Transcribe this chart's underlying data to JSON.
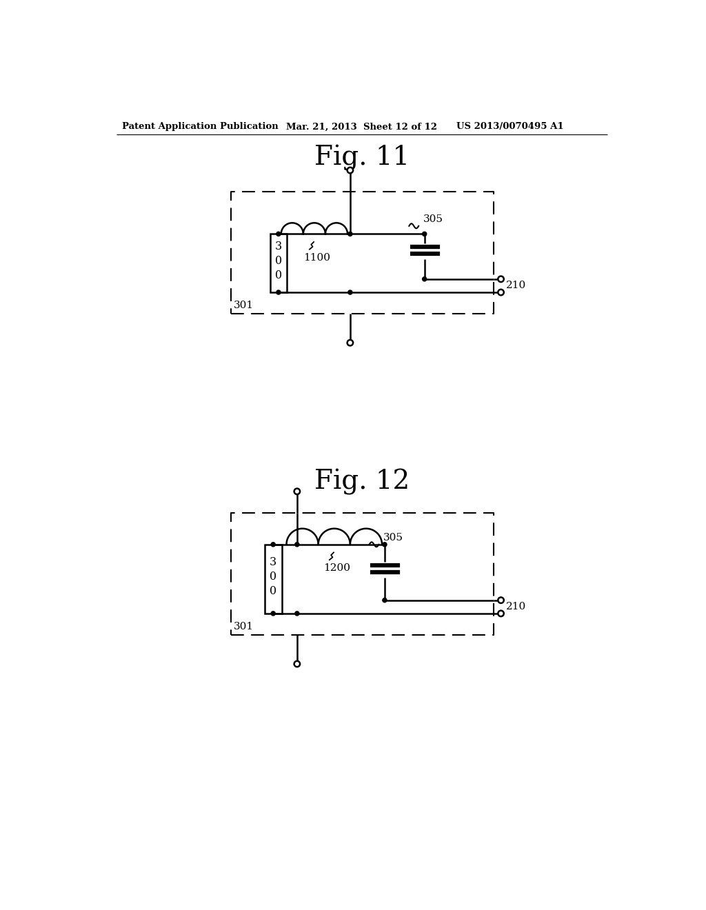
{
  "header_left": "Patent Application Publication",
  "header_mid": "Mar. 21, 2013  Sheet 12 of 12",
  "header_right": "US 2013/0070495 A1",
  "fig11_title": "Fig. 11",
  "fig12_title": "Fig. 12",
  "label_300": "3\n0\n0",
  "label_1100": "1100",
  "label_1200": "1200",
  "label_305_11": "305",
  "label_305_12": "305",
  "label_210": "210",
  "label_301": "301",
  "bg_color": "#ffffff",
  "lc": "#000000"
}
